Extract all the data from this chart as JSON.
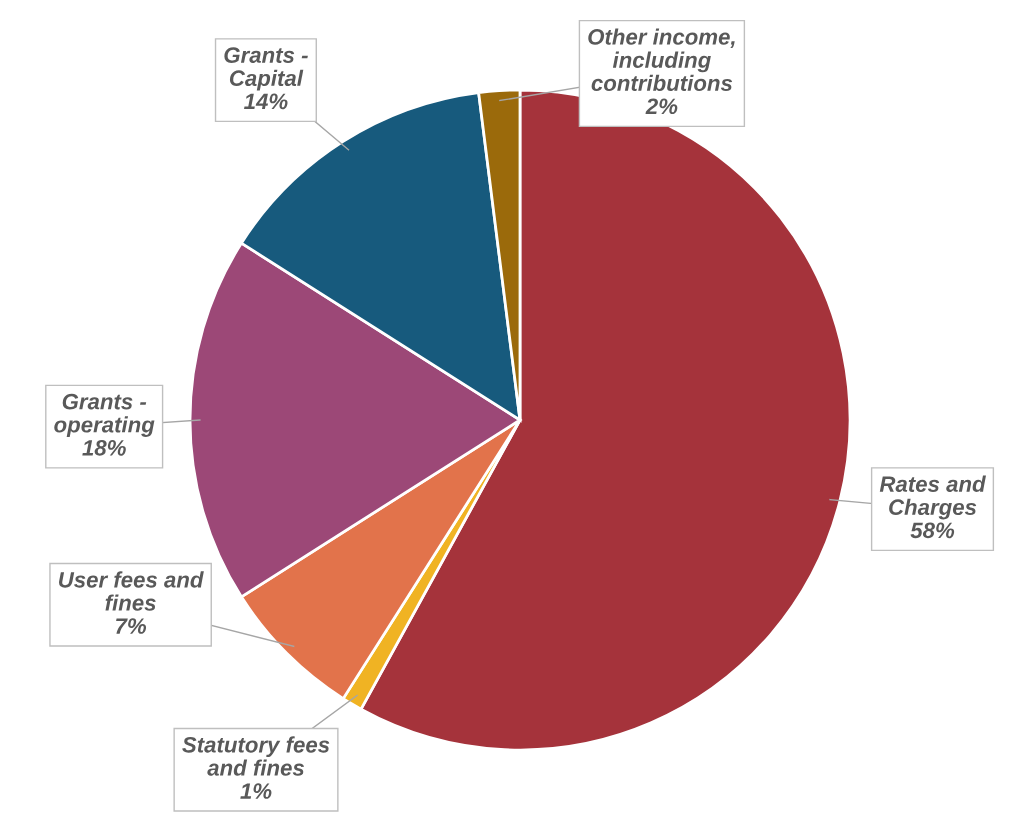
{
  "chart_data": {
    "type": "pie",
    "categories": [
      "Rates and\nCharges",
      "Statutory fees\nand fines",
      "User fees and\nfines",
      "Grants -\noperating",
      "Grants -\nCapital",
      "Other income,\nincluding\ncontributions"
    ],
    "values": [
      58,
      1,
      7,
      18,
      14,
      2
    ],
    "value_labels": [
      "58%",
      "1%",
      "7%",
      "18%",
      "14%",
      "2%"
    ],
    "colors": [
      "#a5333b",
      "#f0b323",
      "#e2734b",
      "#9c4877",
      "#175a7d",
      "#9b6a0b"
    ]
  }
}
